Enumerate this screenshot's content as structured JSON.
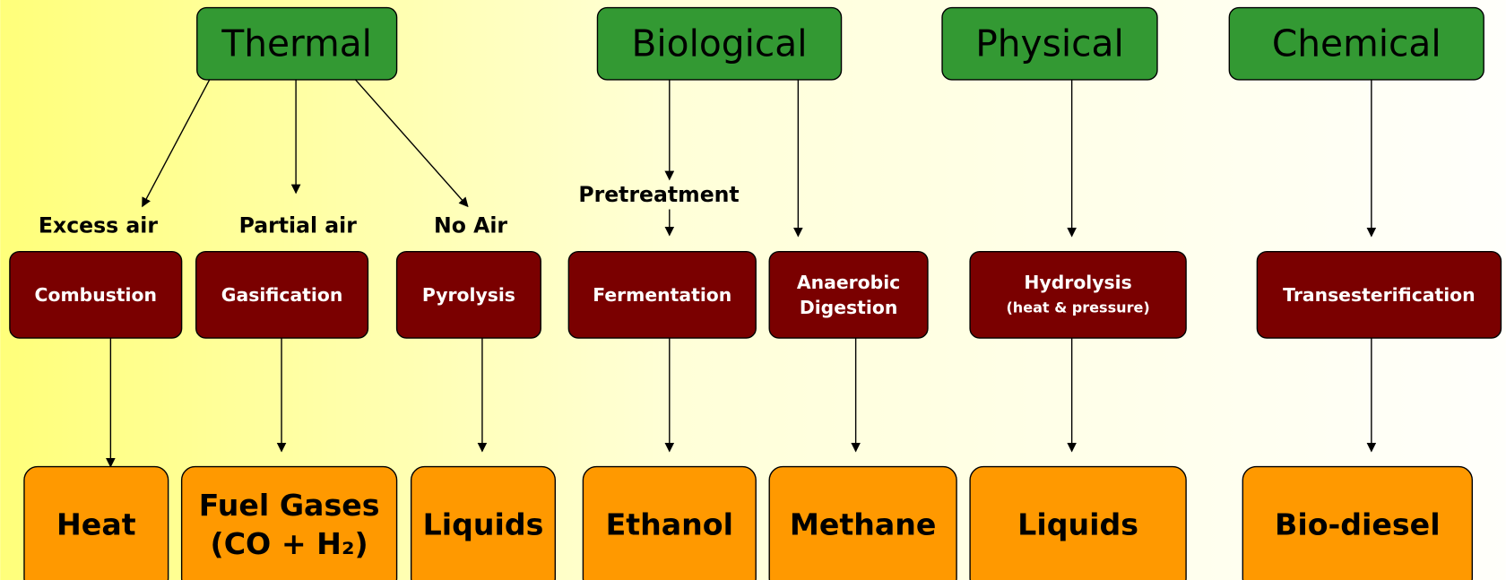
{
  "categories": [
    {
      "label": "Thermal"
    },
    {
      "label": "Biological"
    },
    {
      "label": "Physical"
    },
    {
      "label": "Chemical"
    }
  ],
  "edge_labels": [
    "Excess air",
    "Partial air",
    "No Air",
    "Pretreatment"
  ],
  "processes": [
    {
      "lines": [
        "Combustion"
      ]
    },
    {
      "lines": [
        "Gasification"
      ]
    },
    {
      "lines": [
        "Pyrolysis"
      ]
    },
    {
      "lines": [
        "Fermentation"
      ]
    },
    {
      "lines": [
        "Anaerobic",
        "Digestion"
      ]
    },
    {
      "lines": [
        "Hydrolysis",
        "(heat & pressure)"
      ]
    },
    {
      "lines": [
        "Transesterification"
      ]
    }
  ],
  "products": [
    {
      "lines": [
        "Heat"
      ]
    },
    {
      "lines": [
        "Fuel Gases",
        "(CO + H₂)"
      ]
    },
    {
      "lines": [
        "Liquids"
      ]
    },
    {
      "lines": [
        "Ethanol"
      ]
    },
    {
      "lines": [
        "Methane"
      ]
    },
    {
      "lines": [
        "Liquids"
      ]
    },
    {
      "lines": [
        "Bio-diesel"
      ]
    }
  ]
}
